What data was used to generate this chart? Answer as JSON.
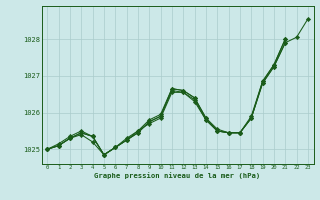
{
  "title": "Graphe pression niveau de la mer (hPa)",
  "bg_color": "#cce8e8",
  "grid_color": "#aacccc",
  "line_color": "#1a5c1a",
  "xlim": [
    -0.5,
    23.5
  ],
  "ylim": [
    1024.6,
    1028.9
  ],
  "yticks": [
    1025,
    1026,
    1027,
    1028
  ],
  "xticks": [
    0,
    1,
    2,
    3,
    4,
    5,
    6,
    7,
    8,
    9,
    10,
    11,
    12,
    13,
    14,
    15,
    16,
    17,
    18,
    19,
    20,
    21,
    22,
    23
  ],
  "series": {
    "line1": [
      1025.0,
      1025.1,
      1025.3,
      1025.45,
      1025.35,
      1024.85,
      1025.05,
      1025.25,
      1025.45,
      1025.75,
      1025.9,
      1026.6,
      1026.55,
      1026.35,
      1025.8,
      1025.5,
      1025.45,
      1025.45,
      1025.85,
      1026.8,
      1027.25,
      1027.9,
      1028.05,
      1028.55
    ],
    "line2": [
      1025.0,
      1025.1,
      1025.3,
      1025.45,
      1025.35,
      1024.85,
      1025.05,
      1025.25,
      1025.45,
      1025.75,
      1025.9,
      1026.65,
      1026.6,
      1026.4,
      1025.85,
      1025.5,
      1025.45,
      1025.45,
      1025.85,
      1026.85,
      1027.3,
      1028.0,
      null,
      null
    ],
    "line3": [
      1025.0,
      1025.15,
      1025.35,
      1025.5,
      1025.35,
      1024.85,
      1025.05,
      1025.3,
      1025.5,
      1025.8,
      1025.95,
      1026.65,
      1026.6,
      1026.4,
      1025.85,
      1025.55,
      1025.45,
      1025.45,
      1025.9,
      1026.85,
      1027.3,
      1028.0,
      null,
      null
    ],
    "line4": [
      1025.0,
      1025.1,
      1025.3,
      1025.4,
      1025.2,
      1024.85,
      1025.05,
      1025.25,
      1025.5,
      1025.7,
      1025.85,
      1026.55,
      1026.55,
      1026.3,
      1025.8,
      1025.5,
      1025.45,
      1025.45,
      1025.85,
      1026.8,
      1027.25,
      1027.9,
      null,
      null
    ]
  },
  "marker": "D",
  "marker_size": 2.2,
  "linewidth": 0.75
}
